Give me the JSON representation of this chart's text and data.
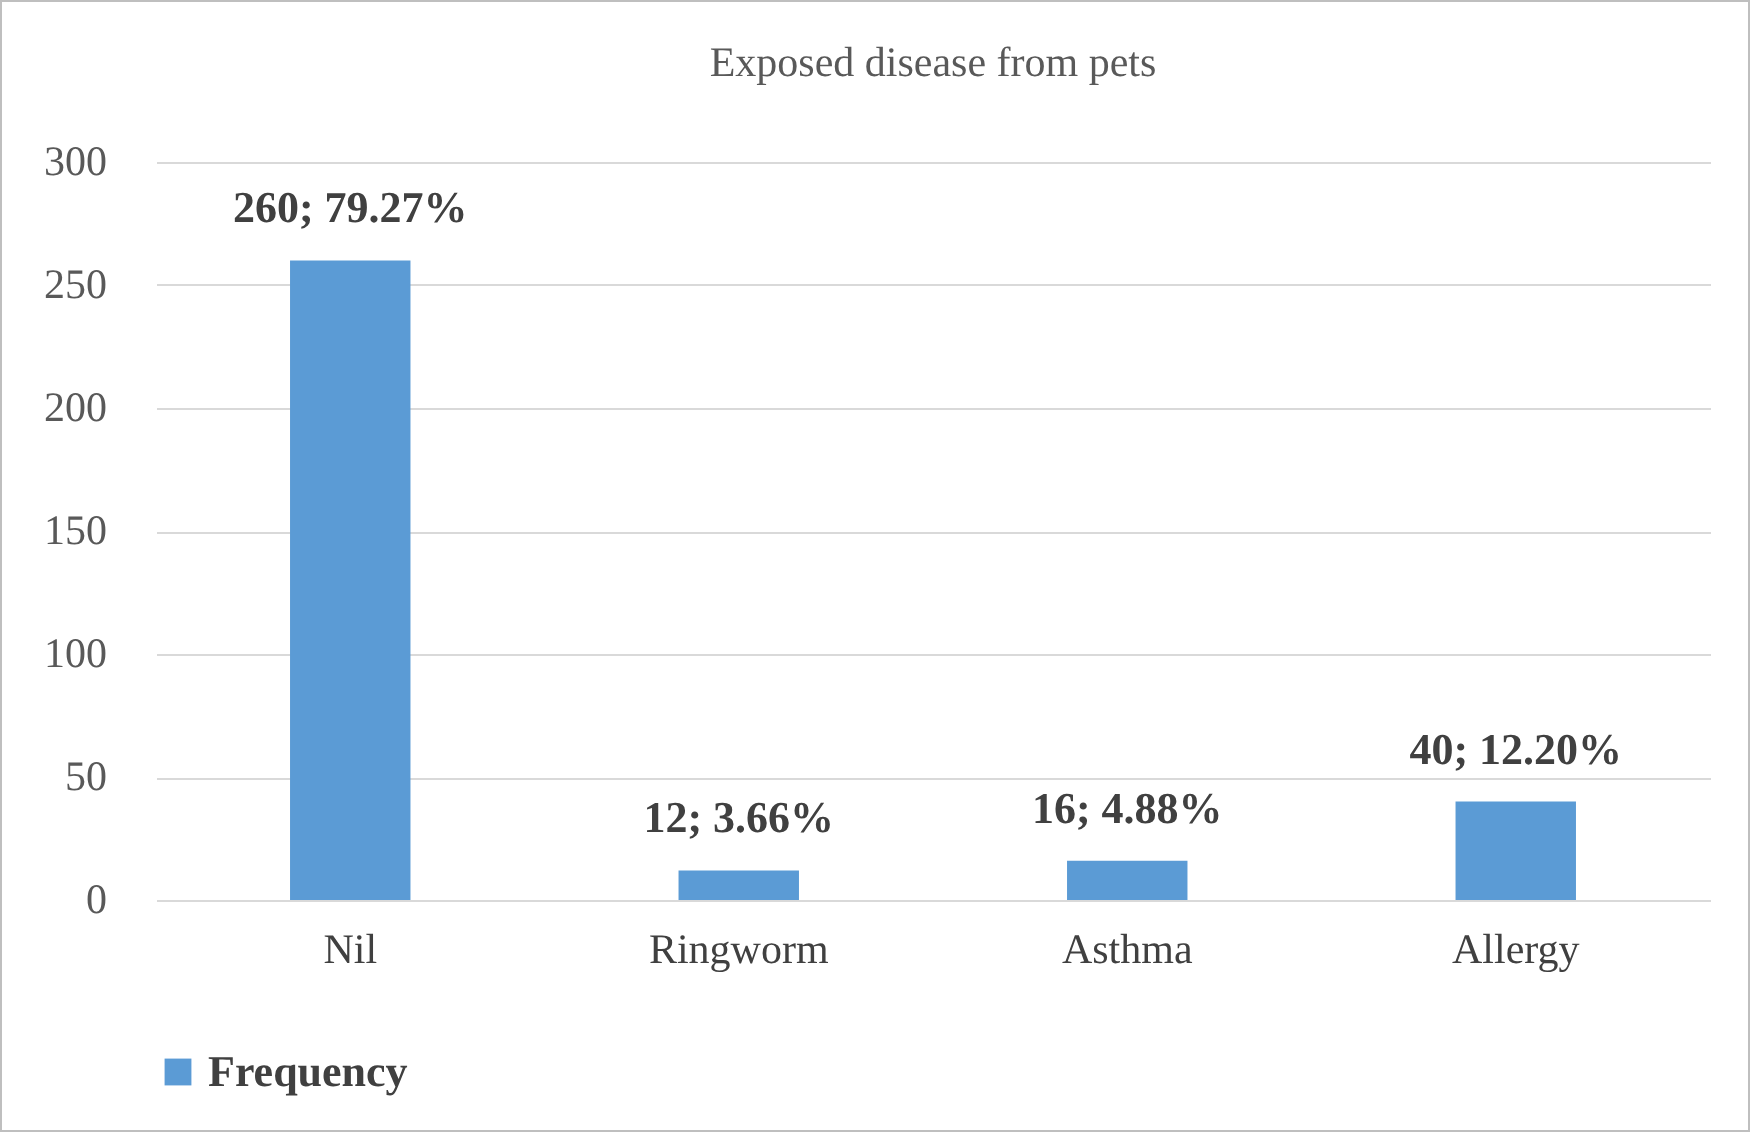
{
  "chart_data": {
    "type": "bar",
    "title": "Exposed disease from pets",
    "categories": [
      "Nil",
      "Ringworm",
      "Asthma",
      "Allergy"
    ],
    "series": [
      {
        "name": "Frequency",
        "color": "#5b9bd5",
        "values": [
          260,
          12,
          16,
          40
        ],
        "value_labels": [
          "260; 79.27%",
          "12; 3.66%",
          "16; 4.88%",
          "40; 12.20%"
        ]
      }
    ],
    "ylim": [
      0,
      300
    ],
    "yticks": [
      0,
      50,
      100,
      150,
      200,
      250,
      300
    ],
    "grid": "y",
    "legend": "bottom"
  }
}
